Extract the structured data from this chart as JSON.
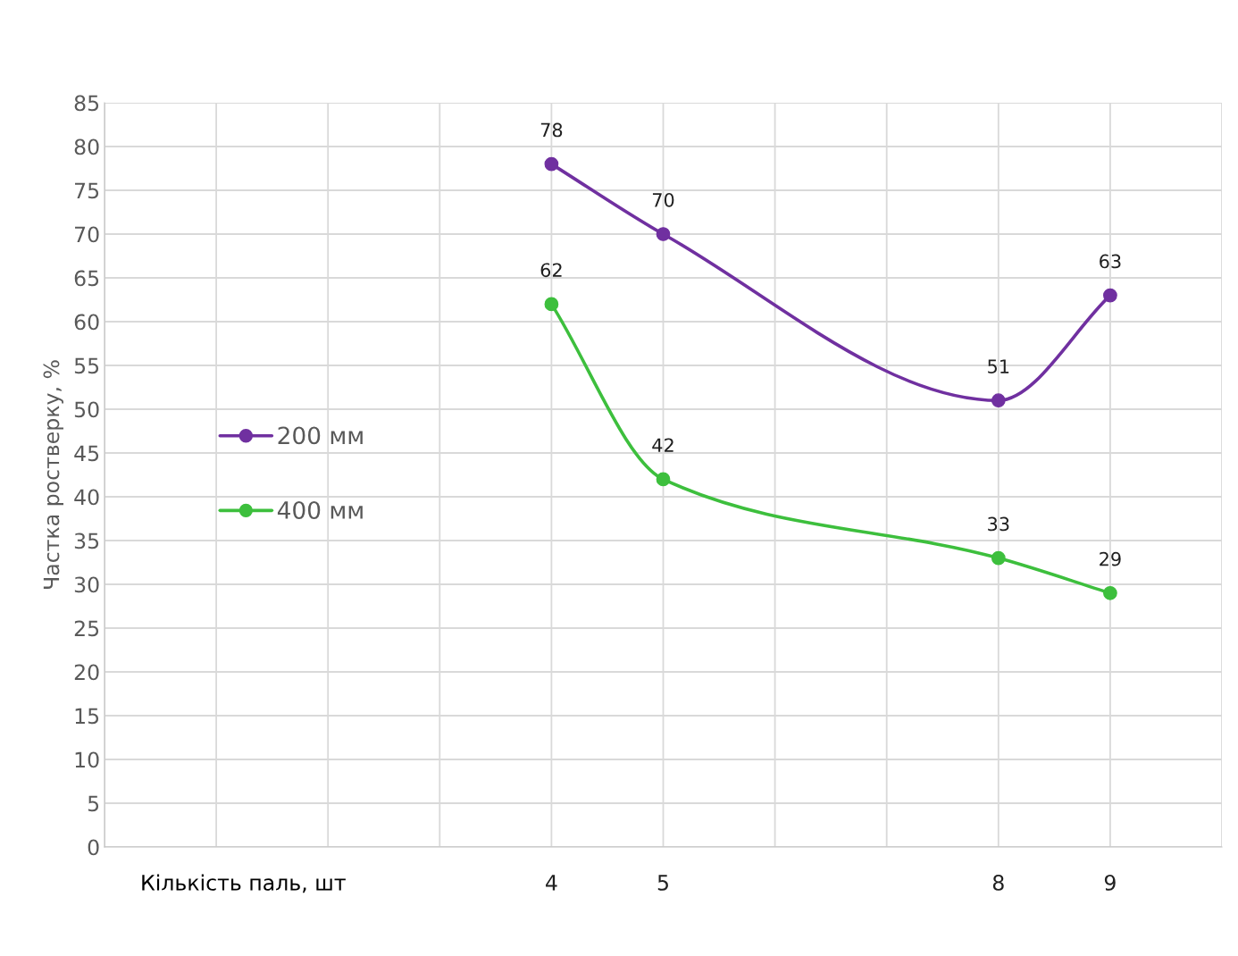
{
  "chart_data": {
    "type": "line",
    "ylabel": "Частка ростверку, %",
    "xlabel": "Кількість паль, шт",
    "x": [
      4,
      5,
      8,
      9
    ],
    "series": [
      {
        "name": "200 мм",
        "color": "#7030a0",
        "values": [
          78,
          70,
          51,
          63
        ]
      },
      {
        "name": "400 мм",
        "color": "#3dbf3d",
        "values": [
          62,
          42,
          33,
          29
        ]
      }
    ],
    "xlim": [
      0,
      10
    ],
    "xticks": [
      {
        "value": 0,
        "label": null
      },
      {
        "value": 1,
        "label": null
      },
      {
        "value": 2,
        "label": null
      },
      {
        "value": 3,
        "label": null
      },
      4,
      5,
      {
        "value": 6,
        "label": null
      },
      {
        "value": 7,
        "label": null
      },
      8,
      9,
      {
        "value": 10,
        "label": null
      }
    ],
    "ylim": [
      0,
      85
    ],
    "yticks": [
      0,
      5,
      10,
      15,
      20,
      25,
      30,
      35,
      40,
      45,
      50,
      55,
      60,
      65,
      70,
      75,
      80,
      85
    ],
    "grid": true,
    "legend": "center left",
    "marker": "circle",
    "line_style": "solid",
    "data_labels": true
  }
}
